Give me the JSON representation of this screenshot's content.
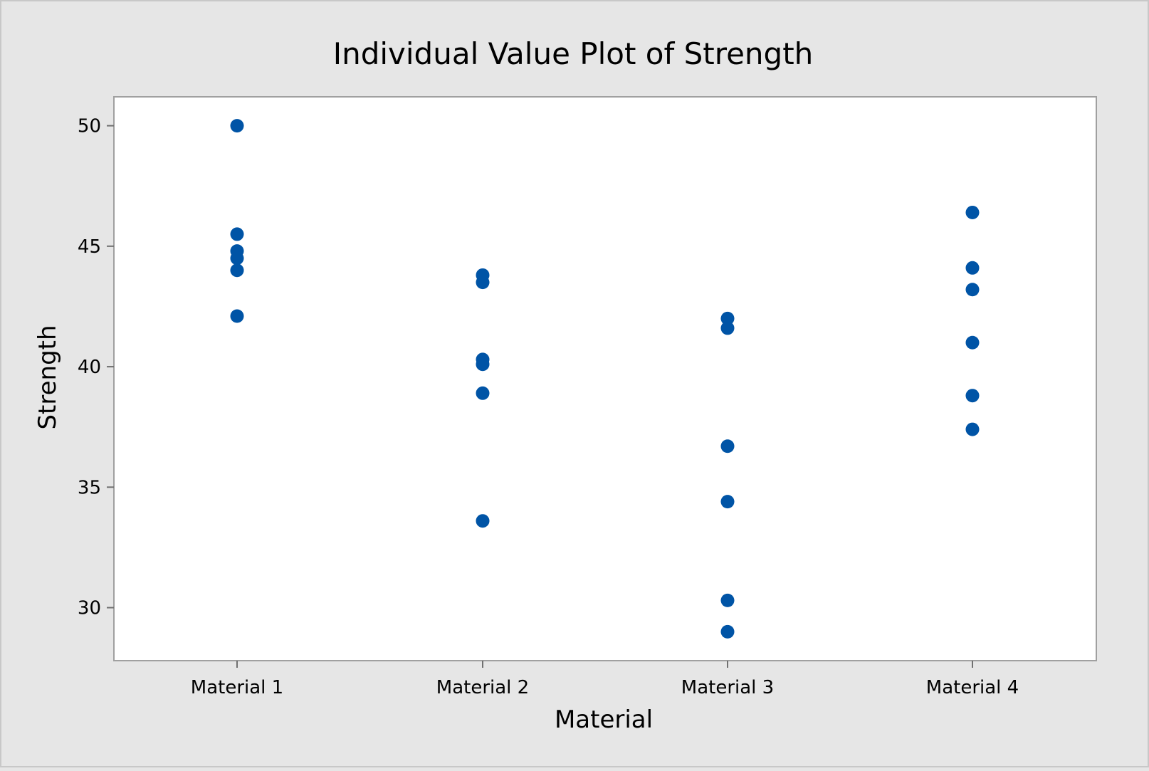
{
  "chart_data": {
    "type": "scatter",
    "title": "Individual Value Plot of Strength",
    "xlabel": "Material",
    "ylabel": "Strength",
    "categories": [
      "Material 1",
      "Material 2",
      "Material 3",
      "Material 4"
    ],
    "ylim": [
      27.8,
      51.2
    ],
    "yticks": [
      "30",
      "35",
      "40",
      "45",
      "50"
    ],
    "grid": false,
    "legend": "none",
    "points": [
      {
        "x": "Material 1",
        "y": 50.0
      },
      {
        "x": "Material 1",
        "y": 45.5
      },
      {
        "x": "Material 1",
        "y": 44.8
      },
      {
        "x": "Material 1",
        "y": 44.5
      },
      {
        "x": "Material 1",
        "y": 44.0
      },
      {
        "x": "Material 1",
        "y": 42.1
      },
      {
        "x": "Material 2",
        "y": 43.8
      },
      {
        "x": "Material 2",
        "y": 43.5
      },
      {
        "x": "Material 2",
        "y": 40.3
      },
      {
        "x": "Material 2",
        "y": 40.1
      },
      {
        "x": "Material 2",
        "y": 38.9
      },
      {
        "x": "Material 2",
        "y": 33.6
      },
      {
        "x": "Material 3",
        "y": 42.0
      },
      {
        "x": "Material 3",
        "y": 41.6
      },
      {
        "x": "Material 3",
        "y": 36.7
      },
      {
        "x": "Material 3",
        "y": 34.4
      },
      {
        "x": "Material 3",
        "y": 30.3
      },
      {
        "x": "Material 3",
        "y": 29.0
      },
      {
        "x": "Material 4",
        "y": 46.4
      },
      {
        "x": "Material 4",
        "y": 44.1
      },
      {
        "x": "Material 4",
        "y": 43.2
      },
      {
        "x": "Material 4",
        "y": 41.0
      },
      {
        "x": "Material 4",
        "y": 38.8
      },
      {
        "x": "Material 4",
        "y": 37.4
      }
    ]
  },
  "colors": {
    "point": "#0054a6",
    "background": "#e6e6e6",
    "plot_area": "#ffffff",
    "frame": "#a0a0a0",
    "axis": "#707070"
  }
}
